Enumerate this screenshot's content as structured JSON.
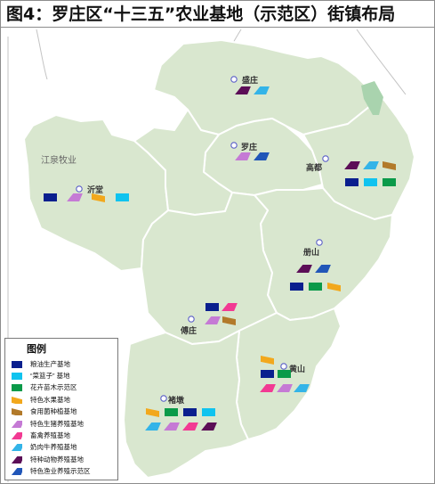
{
  "title": "图4：罗庄区“十三五”农业基地（示范区）街镇布局",
  "neighbor_label": "江泉牧业",
  "colors": {
    "district_fill": "#d9e7cf",
    "district_stroke": "#ffffff",
    "outer_border": "#c3c3c3",
    "river": "#a9d3ae",
    "navy": "#0a1f8e",
    "cyan": "#10c3ef",
    "green": "#0a9a49",
    "orange": "#f2a81c",
    "brown": "#b27a2a",
    "violet": "#c57ad5",
    "pink": "#f23a93",
    "sky": "#33b4e8",
    "purple": "#5c0e57",
    "blue": "#2156b8"
  },
  "towns": [
    {
      "id": "shengzhuang",
      "name": "盛庄"
    },
    {
      "id": "luozhuang",
      "name": "罗庄"
    },
    {
      "id": "gaodu",
      "name": "高都"
    },
    {
      "id": "yitang",
      "name": "沂堂"
    },
    {
      "id": "ceshan",
      "name": "册山"
    },
    {
      "id": "fuzhuang",
      "name": "傅庄"
    },
    {
      "id": "huangshan",
      "name": "黄山"
    },
    {
      "id": "chudun",
      "name": "褚墩"
    }
  ],
  "legend": {
    "title": "图例",
    "items": [
      {
        "key": "navy",
        "label": "粮油生产基地",
        "shape": "rect"
      },
      {
        "key": "cyan",
        "label": "“菜篮子” 基地",
        "shape": "rect"
      },
      {
        "key": "green",
        "label": "花卉苗木示范区",
        "shape": "rect"
      },
      {
        "key": "orange",
        "label": "特色水果基地",
        "shape": "para-down"
      },
      {
        "key": "brown",
        "label": "食用菌种植基地",
        "shape": "para-down"
      },
      {
        "key": "violet",
        "label": "特色生猪养殖基地",
        "shape": "para"
      },
      {
        "key": "pink",
        "label": "畜禽养殖基地",
        "shape": "para"
      },
      {
        "key": "sky",
        "label": "奶肉牛养殖基地",
        "shape": "para"
      },
      {
        "key": "purple",
        "label": "特种动物养殖基地",
        "shape": "para"
      },
      {
        "key": "blue",
        "label": "特色渔业养殖示范区",
        "shape": "para"
      }
    ]
  },
  "town_bases": {
    "shengzhuang": [
      [
        "purple",
        "sky"
      ]
    ],
    "luozhuang": [
      [
        "violet",
        "blue"
      ]
    ],
    "gaodu": [
      [
        "purple",
        "sky",
        "brown"
      ],
      [
        "navy",
        "cyan",
        "green"
      ]
    ],
    "yitang": [
      [
        "navy",
        "violet",
        "orange",
        "cyan"
      ]
    ],
    "ceshan": [
      [
        "purple",
        "blue"
      ],
      [
        "navy",
        "green",
        "orange"
      ]
    ],
    "fuzhuang": [
      [
        "navy",
        "pink"
      ],
      [
        "violet",
        "brown"
      ]
    ],
    "huangshan": [
      [
        "orange"
      ],
      [
        "navy",
        "green"
      ],
      [
        "pink",
        "violet",
        "sky"
      ]
    ],
    "chudun": [
      [
        "orange",
        "green",
        "navy",
        "cyan"
      ],
      [
        "sky",
        "violet",
        "pink",
        "purple"
      ]
    ]
  }
}
